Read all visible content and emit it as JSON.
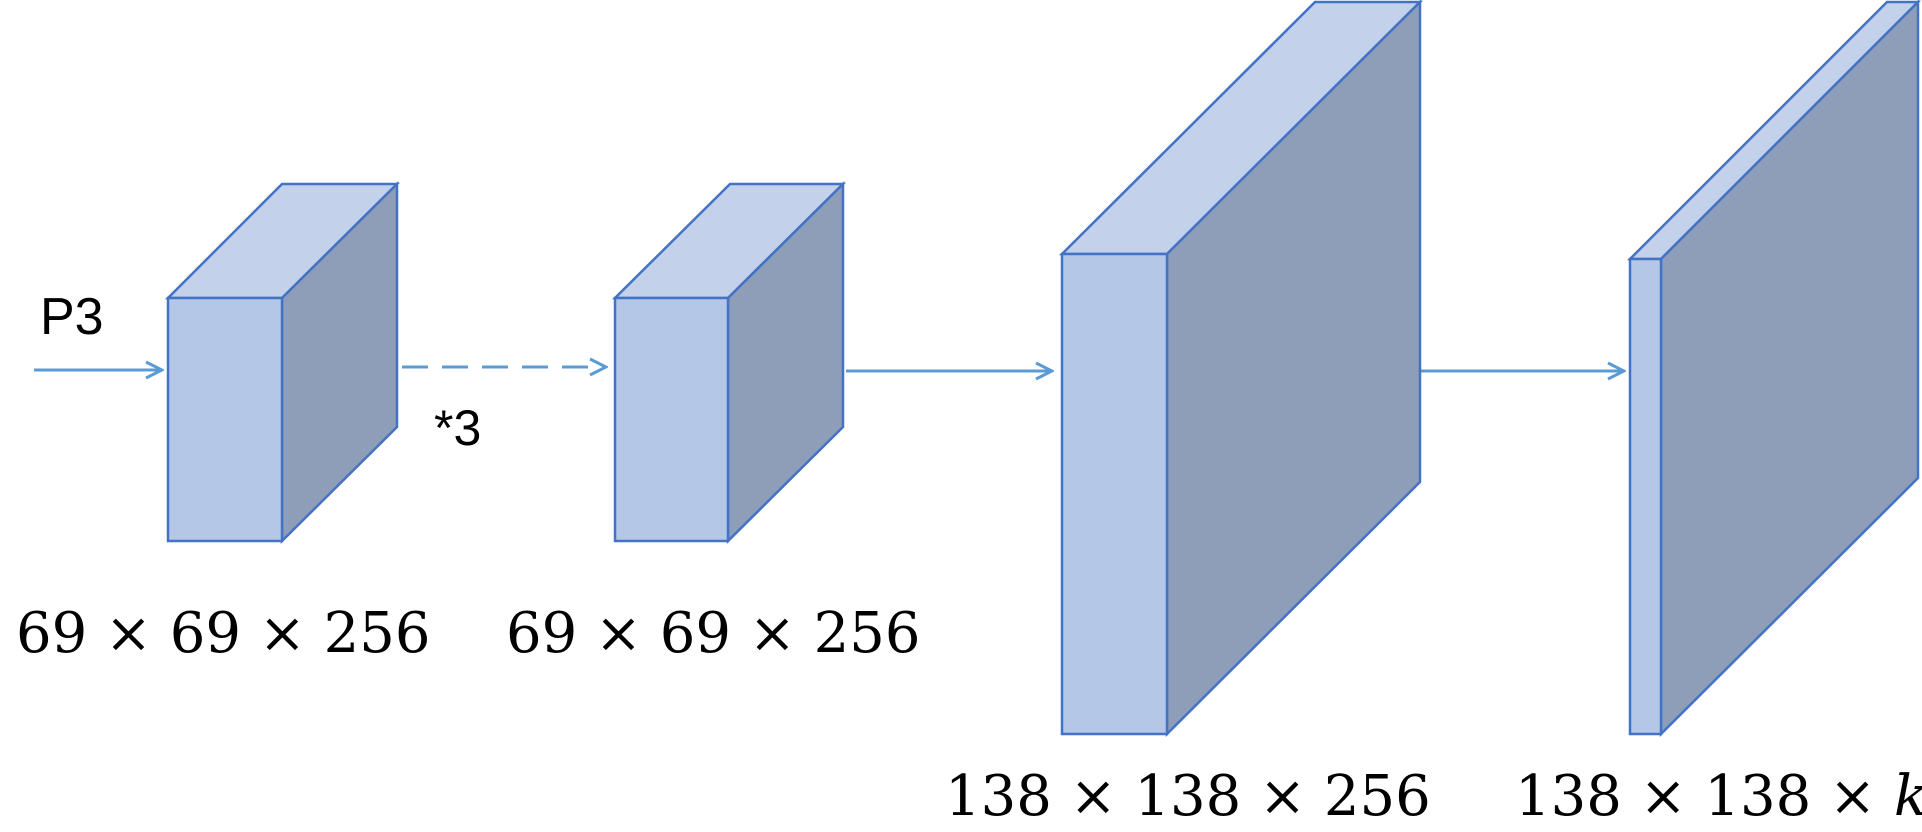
{
  "input_label": "P3",
  "repeat_label": "*3",
  "colors": {
    "stroke": "#4472C4",
    "front_face": "#B4C7E7",
    "top_face": "#C3D1EA",
    "side_face": "#8E9EB8",
    "arrow": "#5B9BD5",
    "text": "#000000"
  },
  "blocks": [
    {
      "id": "block-1",
      "dims": "69 × 69 × 256"
    },
    {
      "id": "block-2",
      "dims": "69 × 69 × 256"
    },
    {
      "id": "block-3",
      "dims": "138 × 138 × 256"
    },
    {
      "id": "block-4",
      "dims_prefix": "138 × 138 × ",
      "dims_var": "k"
    }
  ]
}
